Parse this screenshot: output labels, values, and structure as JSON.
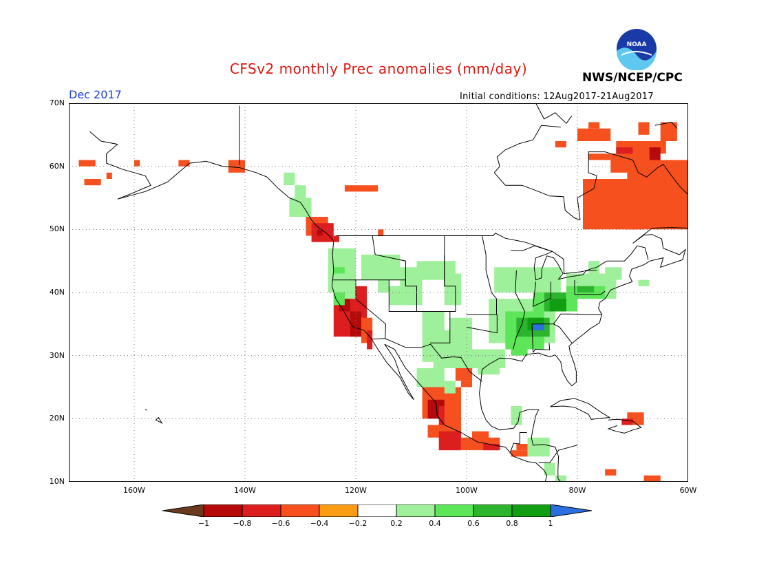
{
  "title": "CFSv2 monthly Prec anomalies (mm/day)",
  "agency": "NWS/NCEP/CPC",
  "logo_text": "NOAA",
  "forecast_month": "Dec 2017",
  "initial_conditions": "Initial conditions: 12Aug2017-21Aug2017",
  "lat_labels": [
    "70N",
    "60N",
    "50N",
    "40N",
    "30N",
    "20N",
    "10N"
  ],
  "lon_labels": [
    "160W",
    "140W",
    "120W",
    "100W",
    "80W",
    "60W"
  ],
  "colorbar": {
    "ticks": [
      "-1",
      "-0.8",
      "-0.6",
      "-0.4",
      "-0.2",
      "0.2",
      "0.4",
      "0.6",
      "0.8",
      "1"
    ],
    "colors": [
      "#6b3a1e",
      "#b40a0a",
      "#dc1e1e",
      "#f5501e",
      "#fa9c14",
      "#ffffff",
      "#9ff09a",
      "#5ee65a",
      "#2db42d",
      "#129e12",
      "#2b6fe0"
    ]
  }
}
